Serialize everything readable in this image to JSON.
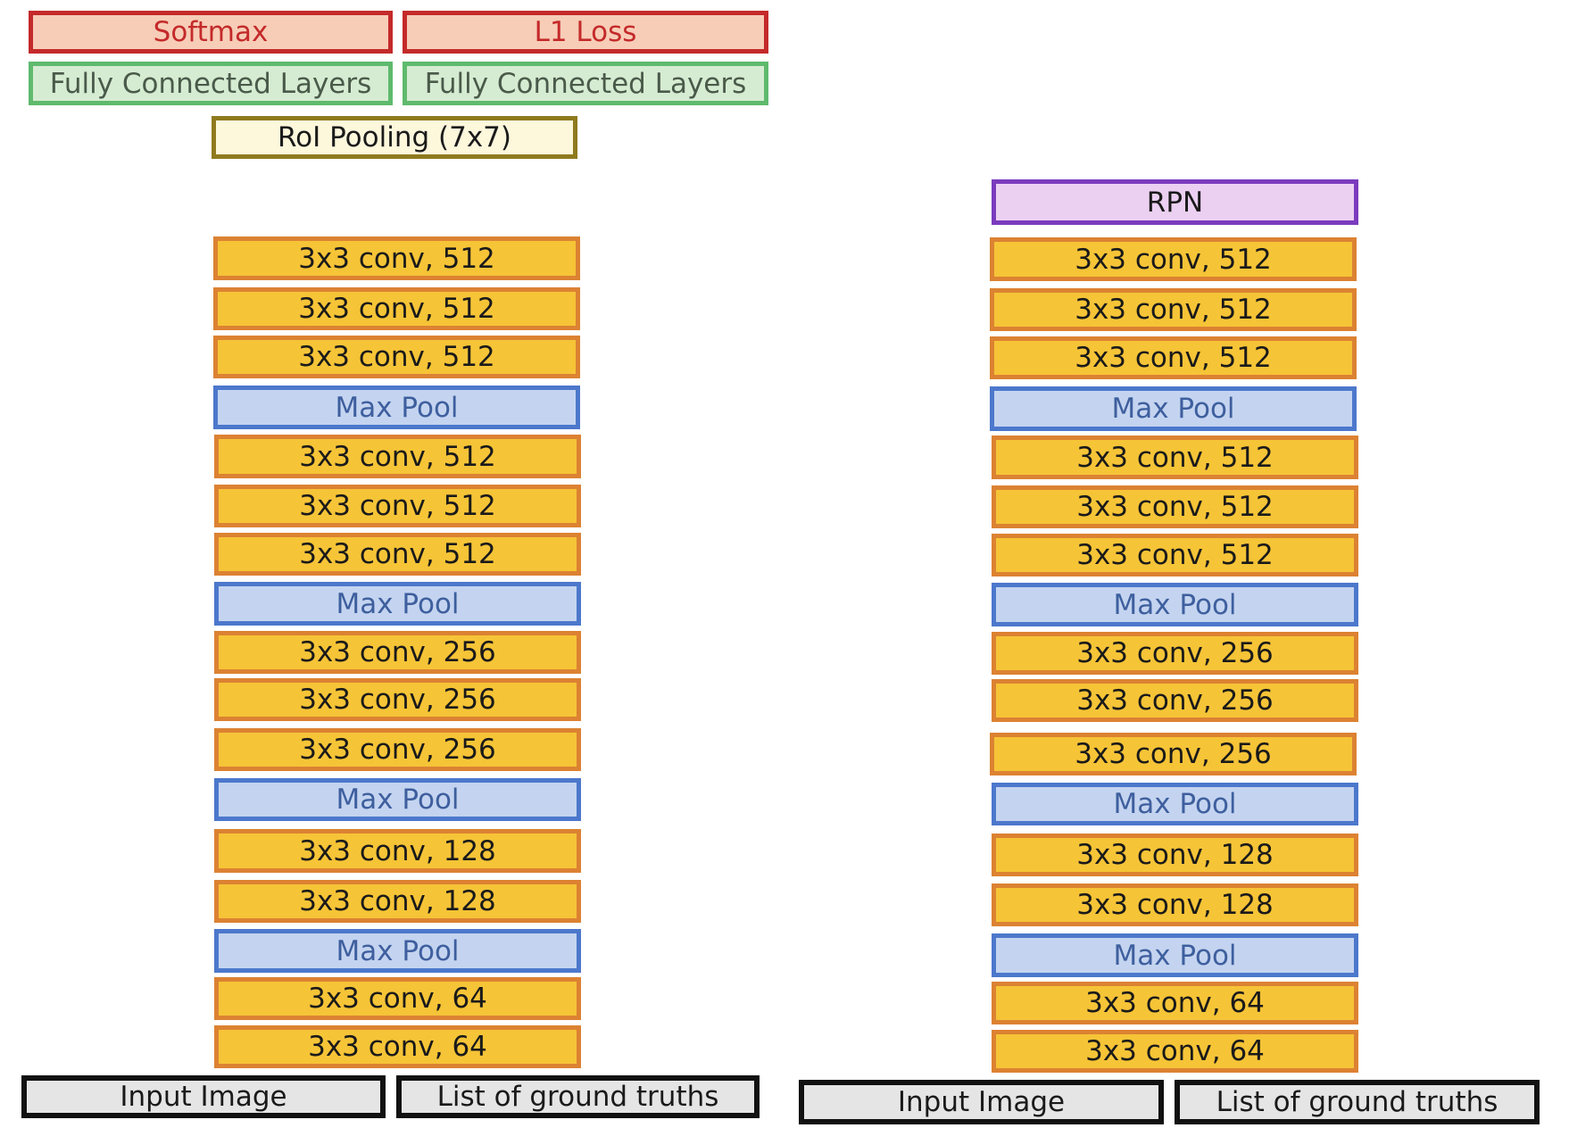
{
  "left_stack": {
    "softmax": "Softmax",
    "l1_loss": "L1 Loss",
    "fc_a": "Fully Connected Layers",
    "fc_b": "Fully Connected Layers",
    "roi": "RoI Pooling (7x7)",
    "layers": [
      "3x3 conv, 512",
      "3x3 conv, 512",
      "3x3 conv, 512",
      "Max Pool",
      "3x3 conv, 512",
      "3x3 conv, 512",
      "3x3 conv, 512",
      "Max Pool",
      "3x3 conv, 256",
      "3x3 conv, 256",
      "3x3 conv, 256",
      "Max Pool",
      "3x3 conv, 128",
      "3x3 conv, 128",
      "Max Pool",
      "3x3 conv, 64",
      "3x3 conv, 64"
    ],
    "input_image": "Input Image",
    "ground_truths": "List of ground truths"
  },
  "right_stack": {
    "rpn": "RPN",
    "layers": [
      "3x3 conv, 512",
      "3x3 conv, 512",
      "3x3 conv, 512",
      "Max Pool",
      "3x3 conv, 512",
      "3x3 conv, 512",
      "3x3 conv, 512",
      "Max Pool",
      "3x3 conv, 256",
      "3x3 conv, 256",
      "3x3 conv, 256",
      "Max Pool",
      "3x3 conv, 128",
      "3x3 conv, 128",
      "Max Pool",
      "3x3 conv, 64",
      "3x3 conv, 64"
    ],
    "input_image": "Input Image",
    "ground_truths": "List of ground truths"
  }
}
